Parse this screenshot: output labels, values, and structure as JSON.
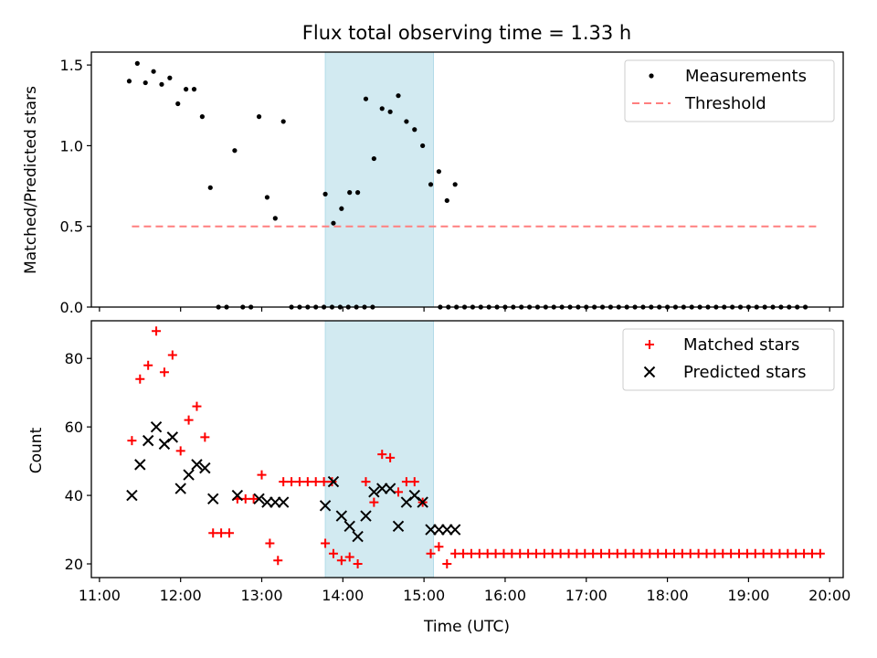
{
  "chart_data": [
    {
      "type": "scatter",
      "title": "Flux total observing time = 1.33 h",
      "xlabel": "",
      "ylabel": "Matched/Predicted stars",
      "xlim": [
        "10:54",
        "20:10"
      ],
      "ylim": [
        0,
        1.58
      ],
      "yticks": [
        {
          "value": 0.0,
          "label": "0.0"
        },
        {
          "value": 0.5,
          "label": "0.5"
        },
        {
          "value": 1.0,
          "label": "1.0"
        },
        {
          "value": 1.5,
          "label": "1.5"
        }
      ],
      "xticks": [
        "11:00",
        "12:00",
        "13:00",
        "14:00",
        "15:00",
        "16:00",
        "17:00",
        "18:00",
        "19:00",
        "20:00"
      ],
      "xtick_labels_shown": false,
      "shaded_interval": {
        "start": "13:47",
        "end": "15:07",
        "color": "#add8e6"
      },
      "legend": {
        "position": "top-right",
        "entries": [
          "Measurements",
          "Threshold"
        ]
      },
      "series": [
        {
          "name": "Measurements",
          "marker": "dot",
          "color": "#000000",
          "points": [
            [
              "11:22",
              1.4
            ],
            [
              "11:28",
              1.51
            ],
            [
              "11:34",
              1.39
            ],
            [
              "11:40",
              1.46
            ],
            [
              "11:46",
              1.38
            ],
            [
              "11:52",
              1.42
            ],
            [
              "11:58",
              1.26
            ],
            [
              "12:04",
              1.35
            ],
            [
              "12:10",
              1.35
            ],
            [
              "12:16",
              1.18
            ],
            [
              "12:22",
              0.74
            ],
            [
              "12:28",
              0.0
            ],
            [
              "12:34",
              0.0
            ],
            [
              "12:40",
              0.97
            ],
            [
              "12:46",
              0.0
            ],
            [
              "12:52",
              0.0
            ],
            [
              "12:58",
              1.18
            ],
            [
              "13:04",
              0.68
            ],
            [
              "13:10",
              0.55
            ],
            [
              "13:16",
              1.15
            ],
            [
              "13:22",
              0.0
            ],
            [
              "13:28",
              0.0
            ],
            [
              "13:34",
              0.0
            ],
            [
              "13:40",
              0.0
            ],
            [
              "13:46",
              0.0
            ],
            [
              "13:52",
              0.0
            ],
            [
              "13:58",
              0.0
            ],
            [
              "14:04",
              0.0
            ],
            [
              "14:10",
              0.0
            ],
            [
              "14:16",
              0.0
            ],
            [
              "14:22",
              0.0
            ],
            [
              "13:47",
              0.7
            ],
            [
              "13:53",
              0.52
            ],
            [
              "13:59",
              0.61
            ],
            [
              "14:05",
              0.71
            ],
            [
              "14:11",
              0.71
            ],
            [
              "14:17",
              1.29
            ],
            [
              "14:23",
              0.92
            ],
            [
              "14:29",
              1.23
            ],
            [
              "14:35",
              1.21
            ],
            [
              "14:41",
              1.31
            ],
            [
              "14:47",
              1.15
            ],
            [
              "14:53",
              1.1
            ],
            [
              "14:59",
              1.0
            ],
            [
              "15:05",
              0.76
            ],
            [
              "15:11",
              0.84
            ],
            [
              "15:17",
              0.66
            ],
            [
              "15:23",
              0.76
            ]
          ],
          "zeros_from": "15:12",
          "zeros_to": "19:47",
          "zeros_step_min": 6
        },
        {
          "name": "Threshold",
          "style": "dashed",
          "color": "#ff7f7f",
          "points": [
            [
              "11:24",
              0.5
            ],
            [
              "19:51",
              0.5
            ]
          ]
        }
      ]
    },
    {
      "type": "scatter",
      "title": "",
      "xlabel": "Time (UTC)",
      "ylabel": "Count",
      "xlim": [
        "10:54",
        "20:10"
      ],
      "ylim": [
        16,
        91
      ],
      "yticks": [
        {
          "value": 20,
          "label": "20"
        },
        {
          "value": 40,
          "label": "40"
        },
        {
          "value": 60,
          "label": "60"
        },
        {
          "value": 80,
          "label": "80"
        }
      ],
      "xticks": [
        "11:00",
        "12:00",
        "13:00",
        "14:00",
        "15:00",
        "16:00",
        "17:00",
        "18:00",
        "19:00",
        "20:00"
      ],
      "shaded_interval": {
        "start": "13:47",
        "end": "15:07",
        "color": "#add8e6"
      },
      "legend": {
        "position": "top-right",
        "entries": [
          "Matched stars",
          "Predicted stars"
        ]
      },
      "series": [
        {
          "name": "Matched stars",
          "marker": "plus",
          "color": "#ff0000",
          "points": [
            [
              "11:24",
              56
            ],
            [
              "11:30",
              74
            ],
            [
              "11:36",
              78
            ],
            [
              "11:42",
              88
            ],
            [
              "11:48",
              76
            ],
            [
              "11:54",
              81
            ],
            [
              "12:00",
              53
            ],
            [
              "12:06",
              62
            ],
            [
              "12:12",
              66
            ],
            [
              "12:18",
              57
            ],
            [
              "12:24",
              29
            ],
            [
              "12:30",
              29
            ],
            [
              "12:36",
              29
            ],
            [
              "12:42",
              39
            ],
            [
              "12:48",
              39
            ],
            [
              "12:54",
              39
            ],
            [
              "13:00",
              46
            ],
            [
              "13:06",
              26
            ],
            [
              "13:12",
              21
            ],
            [
              "13:47",
              26
            ],
            [
              "13:53",
              23
            ],
            [
              "13:59",
              21
            ],
            [
              "14:05",
              22
            ],
            [
              "14:11",
              20
            ],
            [
              "14:17",
              44
            ],
            [
              "14:23",
              38
            ],
            [
              "14:29",
              52
            ],
            [
              "14:35",
              51
            ],
            [
              "14:41",
              41
            ],
            [
              "14:47",
              44
            ],
            [
              "14:53",
              44
            ],
            [
              "14:59",
              38
            ],
            [
              "15:05",
              23
            ],
            [
              "15:11",
              25
            ],
            [
              "15:17",
              20
            ]
          ],
          "flat_runs": [
            {
              "from": "13:16",
              "to": "13:52",
              "step_min": 6,
              "value": 44
            },
            {
              "from": "15:23",
              "to": "19:53",
              "step_min": 6,
              "value": 23
            }
          ]
        },
        {
          "name": "Predicted stars",
          "marker": "x",
          "color": "#000000",
          "points": [
            [
              "11:24",
              40
            ],
            [
              "11:30",
              49
            ],
            [
              "11:36",
              56
            ],
            [
              "11:42",
              60
            ],
            [
              "11:48",
              55
            ],
            [
              "11:54",
              57
            ],
            [
              "12:00",
              42
            ],
            [
              "12:06",
              46
            ],
            [
              "12:12",
              49
            ],
            [
              "12:18",
              48
            ],
            [
              "12:24",
              39
            ],
            [
              "12:42",
              40
            ],
            [
              "12:58",
              39
            ],
            [
              "13:04",
              38
            ],
            [
              "13:10",
              38
            ],
            [
              "13:16",
              38
            ],
            [
              "13:47",
              37
            ],
            [
              "13:53",
              44
            ],
            [
              "13:59",
              34
            ],
            [
              "14:05",
              31
            ],
            [
              "14:11",
              28
            ],
            [
              "14:17",
              34
            ],
            [
              "14:23",
              41
            ],
            [
              "14:29",
              42
            ],
            [
              "14:35",
              42
            ],
            [
              "14:41",
              31
            ],
            [
              "14:47",
              38
            ],
            [
              "14:53",
              40
            ],
            [
              "14:59",
              38
            ],
            [
              "15:05",
              30
            ],
            [
              "15:11",
              30
            ],
            [
              "15:17",
              30
            ],
            [
              "15:23",
              30
            ]
          ]
        }
      ]
    }
  ]
}
